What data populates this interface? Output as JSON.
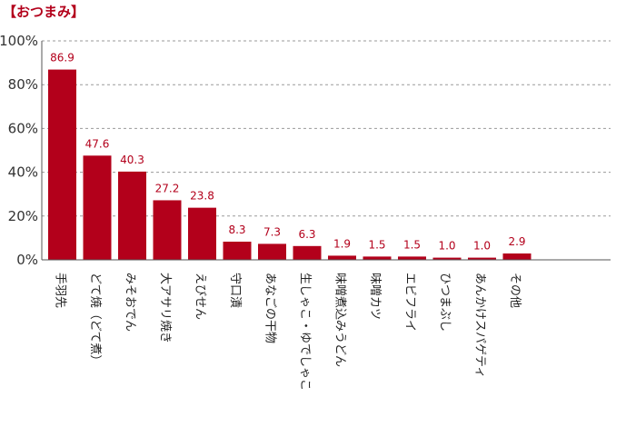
{
  "chart_data": {
    "type": "bar",
    "title": "【おつまみ】",
    "categories": [
      "手羽先",
      "どて焼（どて煮）",
      "みそおでん",
      "大アサリ焼き",
      "えびせん",
      "守口漬",
      "あなごの干物",
      "生しゃこ・ゆでしゃこ",
      "味噌煮込みうどん",
      "味噌カツ",
      "エビフライ",
      "ひつまぶし",
      "あんかけスパゲティ",
      "その他"
    ],
    "values": [
      86.9,
      47.6,
      40.3,
      27.2,
      23.8,
      8.3,
      7.3,
      6.3,
      1.9,
      1.5,
      1.5,
      1.0,
      1.0,
      2.9
    ],
    "value_labels": [
      "86.9",
      "47.6",
      "40.3",
      "27.2",
      "23.8",
      "8.3",
      "7.3",
      "6.3",
      "1.9",
      "1.5",
      "1.5",
      "1.0",
      "1.0",
      "2.9"
    ],
    "y_ticks": [
      "0%",
      "20%",
      "40%",
      "60%",
      "80%",
      "100%"
    ],
    "ylim": [
      0,
      100
    ],
    "grid": true,
    "xlabel": "",
    "ylabel": "",
    "colors": {
      "bar": "#b3001b",
      "grid": "#9a9a9a",
      "axis": "#555555",
      "title": "#b3001b"
    }
  }
}
